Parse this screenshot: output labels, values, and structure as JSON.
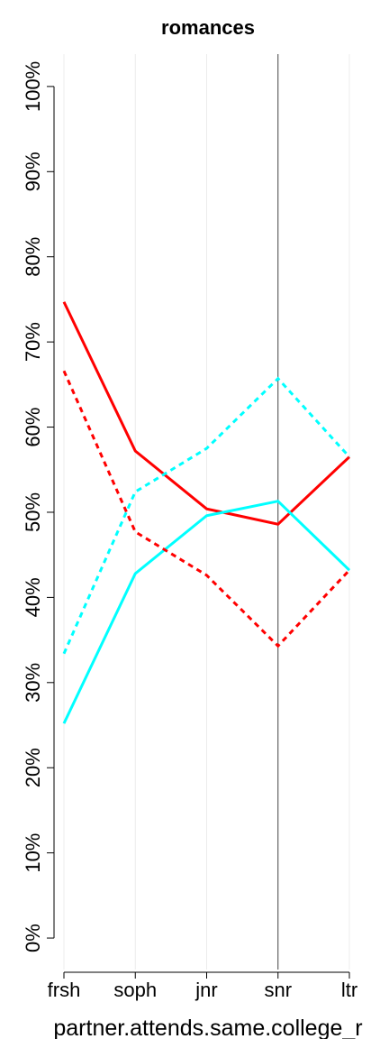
{
  "chart_data": {
    "type": "line",
    "title": "romances",
    "x_label": "partner.attends.same.college_r",
    "categories": [
      "frsh",
      "soph",
      "jnr",
      "snr",
      "ltr"
    ],
    "ylim": [
      -3.7,
      103.8
    ],
    "yticks": [
      {
        "value": 0,
        "label": "0%"
      },
      {
        "value": 10,
        "label": "10%"
      },
      {
        "value": 20,
        "label": "20%"
      },
      {
        "value": 30,
        "label": "30%"
      },
      {
        "value": 40,
        "label": "40%"
      },
      {
        "value": 50,
        "label": "50%"
      },
      {
        "value": 60,
        "label": "60%"
      },
      {
        "value": 70,
        "label": "70%"
      },
      {
        "value": 80,
        "label": "80%"
      },
      {
        "value": 90,
        "label": "90%"
      },
      {
        "value": 100,
        "label": "100%"
      }
    ],
    "grid": true,
    "highlight_category": 3,
    "series": [
      {
        "color": "#ff0000",
        "dashed": false,
        "values": [
          74.7,
          57.2,
          50.4,
          48.6,
          56.5
        ]
      },
      {
        "color": "#00ffff",
        "dashed": false,
        "values": [
          25.2,
          42.8,
          49.6,
          51.3,
          43.2
        ]
      },
      {
        "color": "#ff0000",
        "dashed": true,
        "values": [
          66.6,
          47.7,
          42.6,
          34.3,
          43.2
        ]
      },
      {
        "color": "#00ffff",
        "dashed": true,
        "values": [
          33.4,
          52.4,
          57.5,
          65.7,
          56.5
        ]
      }
    ]
  }
}
